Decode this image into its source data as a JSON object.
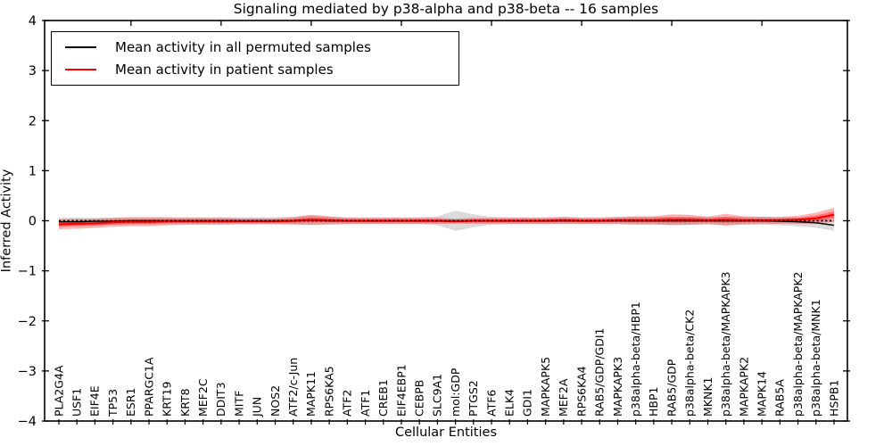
{
  "figure": {
    "title": "Signaling mediated by p38-alpha and p38-beta -- 16 samples",
    "xlabel": "Cellular Entities",
    "ylabel": "Inferred Activity"
  },
  "chart_data": {
    "type": "line",
    "title": "Signaling mediated by p38-alpha and p38-beta -- 16 samples",
    "xlabel": "Cellular Entities",
    "ylabel": "Inferred Activity",
    "ylim": [
      -4,
      4
    ],
    "yticks": [
      4,
      3,
      2,
      1,
      0,
      -1,
      -2,
      -3,
      -4
    ],
    "grid": false,
    "legend_position": "upper left",
    "zero_line": {
      "y": 0,
      "style": "dotted",
      "color": "#000000"
    },
    "categories": [
      "PLA2G4A",
      "USF1",
      "EIF4E",
      "TP53",
      "ESR1",
      "PPARGC1A",
      "KRT19",
      "KRT8",
      "MEF2C",
      "DDIT3",
      "MITF",
      "JUN",
      "NOS2",
      "ATF2/c-Jun",
      "MAPK11",
      "RPS6KA5",
      "ATF2",
      "ATF1",
      "CREB1",
      "EIF4EBP1",
      "CEBPB",
      "SLC9A1",
      "mol:GDP",
      "PTGS2",
      "ATF6",
      "ELK4",
      "GDI1",
      "MAPKAPK5",
      "MEF2A",
      "RPS6KA4",
      "RAB5/GDP/GDI1",
      "MAPKAPK3",
      "p38alpha-beta/HBP1",
      "HBP1",
      "RAB5/GDP",
      "p38alpha-beta/CK2",
      "MKNK1",
      "p38alpha-beta/MAPKAPK3",
      "MAPKAPK2",
      "MAPK14",
      "RAB5A",
      "p38alpha-beta/MAPKAPK2",
      "p38alpha-beta/MNK1",
      "HSPB1"
    ],
    "series": [
      {
        "name": "Mean activity in all permuted samples",
        "color": "#000000",
        "band_color": "#888888",
        "band_opacity": 0.3,
        "values": [
          -0.02,
          -0.02,
          -0.01,
          -0.01,
          0,
          0,
          0,
          0,
          0,
          0,
          0,
          0,
          0,
          0,
          0.01,
          0,
          0,
          0,
          0,
          0,
          0,
          0,
          0,
          0,
          0,
          0,
          0,
          0,
          0,
          0,
          0,
          0,
          0,
          0,
          0,
          0,
          0,
          0,
          0,
          0,
          -0.01,
          -0.02,
          -0.04,
          -0.09
        ],
        "band_halfwidth": [
          0.08,
          0.08,
          0.07,
          0.07,
          0.07,
          0.07,
          0.07,
          0.07,
          0.07,
          0.07,
          0.07,
          0.07,
          0.07,
          0.08,
          0.1,
          0.08,
          0.07,
          0.07,
          0.07,
          0.07,
          0.07,
          0.09,
          0.2,
          0.13,
          0.08,
          0.07,
          0.07,
          0.07,
          0.07,
          0.07,
          0.07,
          0.07,
          0.08,
          0.08,
          0.08,
          0.08,
          0.08,
          0.08,
          0.08,
          0.08,
          0.08,
          0.09,
          0.1,
          0.11
        ]
      },
      {
        "name": "Mean activity in patient samples",
        "color": "#ff0000",
        "band_color": "#ff0000",
        "band_opacity": 0.3,
        "values": [
          -0.07,
          -0.06,
          -0.05,
          -0.03,
          -0.02,
          -0.02,
          -0.01,
          -0.01,
          -0.01,
          -0.01,
          -0.01,
          -0.01,
          -0.01,
          0,
          0.02,
          0.01,
          0,
          0,
          0,
          0,
          0,
          0,
          -0.01,
          0,
          0,
          0,
          0,
          0,
          0.01,
          0,
          0,
          0.01,
          0.01,
          0.01,
          0.02,
          0.02,
          0.01,
          0.02,
          0.01,
          0.01,
          0.01,
          0.02,
          0.05,
          0.12
        ],
        "band_halfwidth": [
          0.1,
          0.1,
          0.09,
          0.09,
          0.09,
          0.09,
          0.08,
          0.07,
          0.07,
          0.07,
          0.06,
          0.06,
          0.06,
          0.07,
          0.1,
          0.08,
          0.06,
          0.06,
          0.06,
          0.06,
          0.06,
          0.06,
          0.05,
          0.06,
          0.06,
          0.06,
          0.06,
          0.06,
          0.07,
          0.06,
          0.06,
          0.07,
          0.08,
          0.08,
          0.11,
          0.1,
          0.07,
          0.12,
          0.08,
          0.07,
          0.07,
          0.08,
          0.11,
          0.14
        ]
      }
    ]
  }
}
